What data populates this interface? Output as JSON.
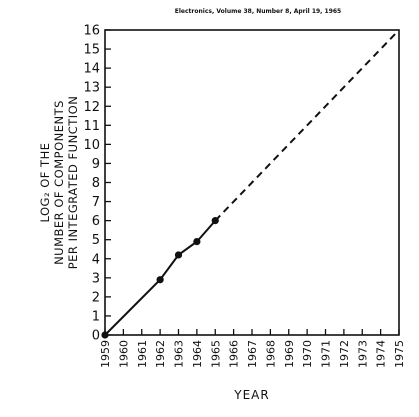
{
  "source": "Electronics, Volume 38, Number 8, April 19, 1965",
  "chart_data": {
    "type": "line",
    "title": "",
    "xlabel": "YEAR",
    "ylabel_lines": [
      "LOG₂ OF THE",
      "NUMBER OF COMPONENTS",
      "PER INTEGRATED FUNCTION"
    ],
    "x_categories": [
      "1959",
      "1960",
      "1961",
      "1962",
      "1963",
      "1964",
      "1965",
      "1966",
      "1967",
      "1968",
      "1969",
      "1970",
      "1971",
      "1972",
      "1973",
      "1974",
      "1975"
    ],
    "y_ticks": [
      "0",
      "1",
      "2",
      "3",
      "4",
      "5",
      "6",
      "7",
      "8",
      "9",
      "10",
      "11",
      "12",
      "13",
      "14",
      "15",
      "16"
    ],
    "xlim": [
      1959,
      1975
    ],
    "ylim": [
      0,
      16
    ],
    "grid": false,
    "series": [
      {
        "style": "solid",
        "markers": true,
        "points": [
          {
            "x": 1959,
            "y": 0
          },
          {
            "x": 1962,
            "y": 2.9
          },
          {
            "x": 1963,
            "y": 4.2
          },
          {
            "x": 1964,
            "y": 4.9
          },
          {
            "x": 1965,
            "y": 6
          }
        ]
      },
      {
        "style": "dashed",
        "markers": false,
        "points": [
          {
            "x": 1965,
            "y": 6
          },
          {
            "x": 1975,
            "y": 16
          }
        ]
      }
    ]
  }
}
